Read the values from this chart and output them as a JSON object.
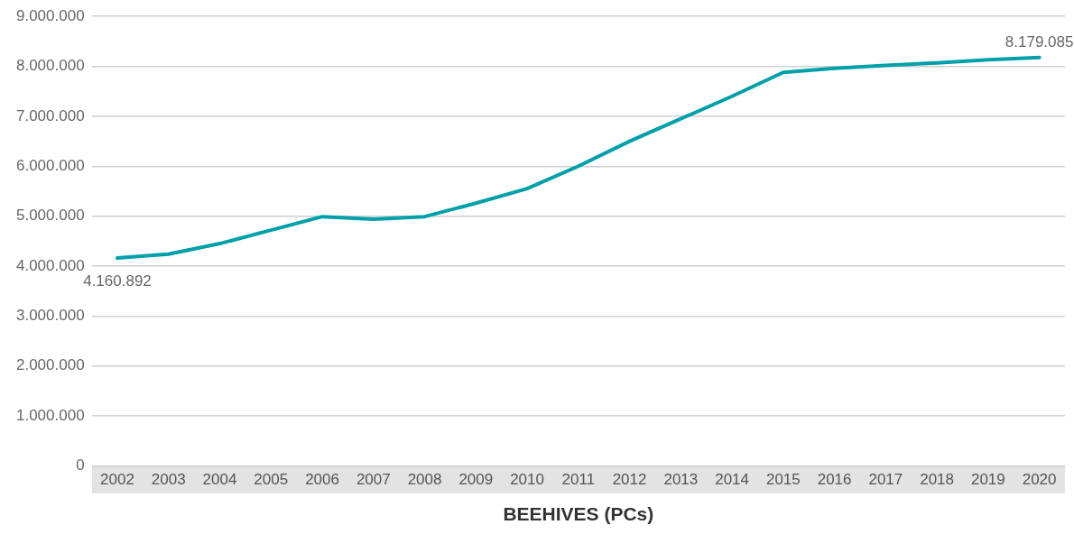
{
  "chart_data": {
    "type": "line",
    "xlabel": "BEEHIVES (PCs)",
    "categories": [
      "2002",
      "2003",
      "2004",
      "2005",
      "2006",
      "2007",
      "2008",
      "2009",
      "2010",
      "2011",
      "2012",
      "2013",
      "2014",
      "2015",
      "2016",
      "2017",
      "2018",
      "2019",
      "2020"
    ],
    "series": [
      {
        "color": "#00a0a8",
        "values": [
          4160892,
          4240000,
          4450000,
          4720000,
          4990000,
          4940000,
          4990000,
          5260000,
          5550000,
          6000000,
          6500000,
          6950000,
          7400000,
          7880000,
          7960000,
          8020000,
          8070000,
          8130000,
          8179085
        ],
        "value_labels": [
          "4.160.892",
          null,
          null,
          null,
          null,
          null,
          null,
          null,
          null,
          null,
          null,
          null,
          null,
          null,
          null,
          null,
          null,
          null,
          "8.179.085"
        ]
      }
    ],
    "ylim": [
      0,
      9000000
    ],
    "yticks": [
      {
        "value": 0,
        "label": "0"
      },
      {
        "value": 1000000,
        "label": "1.000.000"
      },
      {
        "value": 2000000,
        "label": "2.000.000"
      },
      {
        "value": 3000000,
        "label": "3.000.000"
      },
      {
        "value": 4000000,
        "label": "4.000.000"
      },
      {
        "value": 5000000,
        "label": "5.000.000"
      },
      {
        "value": 6000000,
        "label": "6.000.000"
      },
      {
        "value": 7000000,
        "label": "7.000.000"
      },
      {
        "value": 8000000,
        "label": "8.000.000"
      },
      {
        "value": 9000000,
        "label": "9.000.000"
      }
    ],
    "grid": "y",
    "marker": "none",
    "line_style": "solid",
    "legend": false
  }
}
